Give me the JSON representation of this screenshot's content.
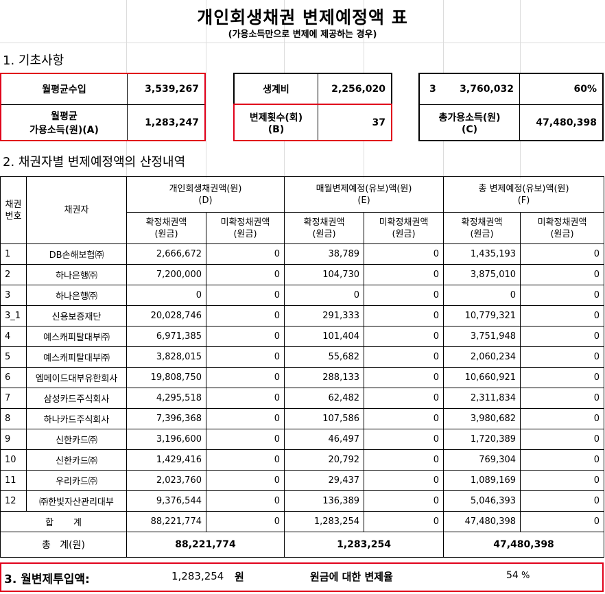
{
  "title": "개인회생채권 변제예정액 표",
  "subtitle": "(가용소득만으로 변제에 제공하는 경우)",
  "section1": "1. 기초사항",
  "section2": "2. 채권자별 변제예정액의 산정내역",
  "basic": {
    "monthly_income_label": "월평균수입",
    "monthly_income_value": "3,539,267",
    "avail_label_line1": "월평균",
    "avail_label_line2": "가용소득(원)(A)",
    "avail_value": "1,283,247",
    "living_cost_label": "생계비",
    "living_cost_value": "2,256,020",
    "repay_count_label_line1": "변제횟수(회)",
    "repay_count_label_line2": "(B)",
    "repay_count_value": "37",
    "r_col1": "3",
    "r_col2": "3,760,032",
    "r_col3": "60%",
    "total_avail_label_line1": "총가용소득(원)",
    "total_avail_label_line2": "(C)",
    "total_avail_value": "47,480,398"
  },
  "table": {
    "h_no": "채권\n번호",
    "h_creditor": "채권자",
    "h_d": "개인회생채권액(원)\n(D)",
    "h_e": "매월변제예정(유보)액(원)\n(E)",
    "h_f": "총 변제예정(유보)액(원)\n(F)",
    "h_fixed": "확정채권액\n(원금)",
    "h_unfixed": "미확정채권액\n(원금)",
    "rows": [
      {
        "no": "1",
        "name": "DB손해보험㈜",
        "d1": "2,666,672",
        "d2": "0",
        "e1": "38,789",
        "e2": "0",
        "f1": "1,435,193",
        "f2": "0"
      },
      {
        "no": "2",
        "name": "하나은행㈜",
        "d1": "7,200,000",
        "d2": "0",
        "e1": "104,730",
        "e2": "0",
        "f1": "3,875,010",
        "f2": "0"
      },
      {
        "no": "3",
        "name": "하나은행㈜",
        "d1": "0",
        "d2": "0",
        "e1": "0",
        "e2": "0",
        "f1": "0",
        "f2": "0"
      },
      {
        "no": "3_1",
        "name": "신용보증재단",
        "d1": "20,028,746",
        "d2": "0",
        "e1": "291,333",
        "e2": "0",
        "f1": "10,779,321",
        "f2": "0"
      },
      {
        "no": "4",
        "name": "예스캐피탈대부㈜",
        "d1": "6,971,385",
        "d2": "0",
        "e1": "101,404",
        "e2": "0",
        "f1": "3,751,948",
        "f2": "0"
      },
      {
        "no": "5",
        "name": "예스캐피탈대부㈜",
        "d1": "3,828,015",
        "d2": "0",
        "e1": "55,682",
        "e2": "0",
        "f1": "2,060,234",
        "f2": "0"
      },
      {
        "no": "6",
        "name": "엠메이드대부유한회사",
        "d1": "19,808,750",
        "d2": "0",
        "e1": "288,133",
        "e2": "0",
        "f1": "10,660,921",
        "f2": "0"
      },
      {
        "no": "7",
        "name": "삼성카드주식회사",
        "d1": "4,295,518",
        "d2": "0",
        "e1": "62,482",
        "e2": "0",
        "f1": "2,311,834",
        "f2": "0"
      },
      {
        "no": "8",
        "name": "하나카드주식회사",
        "d1": "7,396,368",
        "d2": "0",
        "e1": "107,586",
        "e2": "0",
        "f1": "3,980,682",
        "f2": "0"
      },
      {
        "no": "9",
        "name": "신한카드㈜",
        "d1": "3,196,600",
        "d2": "0",
        "e1": "46,497",
        "e2": "0",
        "f1": "1,720,389",
        "f2": "0"
      },
      {
        "no": "10",
        "name": "신한카드㈜",
        "d1": "1,429,416",
        "d2": "0",
        "e1": "20,792",
        "e2": "0",
        "f1": "769,304",
        "f2": "0"
      },
      {
        "no": "11",
        "name": "우리카드㈜",
        "d1": "2,023,760",
        "d2": "0",
        "e1": "29,437",
        "e2": "0",
        "f1": "1,089,169",
        "f2": "0"
      },
      {
        "no": "12",
        "name": "㈜한빛자산관리대부",
        "d1": "9,376,544",
        "d2": "0",
        "e1": "136,389",
        "e2": "0",
        "f1": "5,046,393",
        "f2": "0"
      }
    ],
    "sum_label": "합       계",
    "sum": {
      "d1": "88,221,774",
      "d2": "0",
      "e1": "1,283,254",
      "e2": "0",
      "f1": "47,480,398",
      "f2": "0"
    },
    "total_label": "총   계(원)",
    "total": {
      "d": "88,221,774",
      "e": "1,283,254",
      "f": "47,480,398"
    }
  },
  "bottom": {
    "label": "3. 월변제투입액:",
    "value": "1,283,254",
    "unit": "원",
    "ratio_label": "원금에 대한 변제율",
    "ratio_value": "54",
    "ratio_unit": "%"
  },
  "colors": {
    "highlight": "#e0001a",
    "grid": "#dcdcdc"
  }
}
